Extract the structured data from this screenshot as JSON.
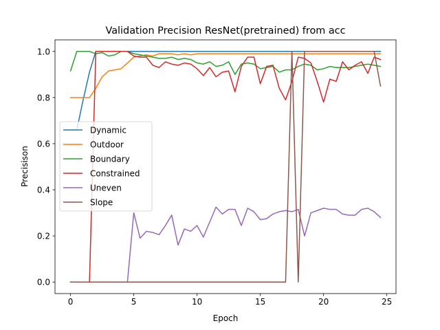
{
  "chart_data": {
    "type": "line",
    "title": "Validation Precision ResNet(pretrained) from acc",
    "xlabel": "Epoch",
    "ylabel": "Precisison",
    "xlim": [
      -1.225,
      25.725
    ],
    "ylim": [
      -0.05,
      1.05
    ],
    "xticks": [
      0,
      5,
      10,
      15,
      20,
      25
    ],
    "yticks": [
      0.0,
      0.2,
      0.4,
      0.6,
      0.8,
      1.0
    ],
    "xtick_labels": [
      "0",
      "5",
      "10",
      "15",
      "20",
      "25"
    ],
    "ytick_labels": [
      "0.0",
      "0.2",
      "0.4",
      "0.6",
      "0.8",
      "1.0"
    ],
    "grid": false,
    "legend_position": "center-left",
    "x": [
      0,
      0.5,
      1,
      1.5,
      2,
      2.5,
      3,
      3.5,
      4,
      4.5,
      5,
      5.5,
      6,
      6.5,
      7,
      7.5,
      8,
      8.5,
      9,
      9.5,
      10,
      10.5,
      11,
      11.5,
      12,
      12.5,
      13,
      13.5,
      14,
      14.5,
      15,
      15.5,
      16,
      16.5,
      17,
      17.5,
      18,
      18.5,
      19,
      19.5,
      20,
      20.5,
      21,
      21.5,
      22,
      22.5,
      23,
      23.5,
      24,
      24.5
    ],
    "series": [
      {
        "name": "Dynamic",
        "color": "#1f77b4",
        "values": [
          0.66,
          0.66,
          0.79,
          0.91,
          1.0,
          1.0,
          1.0,
          1.0,
          1.0,
          1.0,
          1.0,
          1.0,
          1.0,
          1.0,
          1.0,
          1.0,
          1.0,
          1.0,
          1.0,
          1.0,
          1.0,
          1.0,
          1.0,
          1.0,
          1.0,
          1.0,
          1.0,
          1.0,
          1.0,
          1.0,
          1.0,
          1.0,
          1.0,
          1.0,
          1.0,
          1.0,
          1.0,
          1.0,
          1.0,
          1.0,
          1.0,
          1.0,
          1.0,
          1.0,
          1.0,
          1.0,
          1.0,
          1.0,
          1.0,
          1.0
        ]
      },
      {
        "name": "Outdoor",
        "color": "#ff7f0e",
        "values": [
          0.8,
          0.8,
          0.8,
          0.8,
          0.84,
          0.89,
          0.915,
          0.92,
          0.925,
          0.95,
          0.975,
          0.98,
          0.985,
          0.98,
          0.99,
          0.99,
          0.99,
          0.985,
          0.99,
          0.985,
          0.99,
          0.99,
          0.99,
          0.99,
          0.99,
          0.99,
          0.99,
          0.99,
          0.99,
          0.99,
          0.99,
          0.99,
          0.99,
          0.99,
          0.99,
          0.99,
          0.99,
          0.99,
          0.99,
          0.99,
          0.99,
          0.99,
          0.99,
          0.99,
          0.99,
          0.99,
          0.99,
          0.99,
          0.99,
          0.99
        ]
      },
      {
        "name": "Boundary",
        "color": "#2ca02c",
        "values": [
          0.915,
          1.0,
          1.0,
          1.0,
          0.99,
          0.995,
          0.98,
          0.985,
          1.0,
          1.0,
          0.99,
          0.985,
          0.98,
          0.975,
          0.97,
          0.97,
          0.975,
          0.965,
          0.97,
          0.965,
          0.95,
          0.945,
          0.955,
          0.935,
          0.94,
          0.955,
          0.9,
          0.945,
          0.95,
          0.945,
          0.925,
          0.93,
          0.935,
          0.91,
          0.92,
          0.92,
          0.935,
          0.945,
          0.94,
          0.92,
          0.925,
          0.935,
          0.93,
          0.93,
          0.93,
          0.935,
          0.94,
          0.945,
          0.94,
          0.935
        ]
      },
      {
        "name": "Constrained",
        "color": "#d62728",
        "values": [
          0.0,
          0.0,
          0.0,
          0.0,
          1.0,
          1.0,
          1.0,
          1.0,
          1.0,
          1.0,
          0.98,
          0.975,
          0.975,
          0.94,
          0.93,
          0.955,
          0.945,
          0.94,
          0.95,
          0.945,
          0.925,
          0.895,
          0.93,
          0.89,
          0.91,
          0.915,
          0.825,
          0.935,
          0.975,
          0.975,
          0.86,
          0.935,
          0.94,
          0.84,
          0.79,
          0.87,
          0.975,
          0.97,
          0.95,
          0.87,
          0.78,
          0.88,
          0.87,
          0.955,
          0.92,
          0.94,
          0.955,
          0.905,
          0.975,
          0.965
        ]
      },
      {
        "name": "Uneven",
        "color": "#9467bd",
        "values": [
          0.0,
          0.0,
          0.0,
          0.0,
          0.0,
          0.0,
          0.0,
          0.0,
          0.0,
          0.0,
          0.3,
          0.19,
          0.22,
          0.215,
          0.205,
          0.245,
          0.29,
          0.16,
          0.23,
          0.22,
          0.245,
          0.195,
          0.26,
          0.325,
          0.295,
          0.315,
          0.315,
          0.245,
          0.32,
          0.305,
          0.27,
          0.275,
          0.295,
          0.305,
          0.31,
          0.305,
          0.315,
          0.2,
          0.3,
          0.31,
          0.32,
          0.315,
          0.315,
          0.295,
          0.29,
          0.29,
          0.315,
          0.32,
          0.305,
          0.28
        ]
      },
      {
        "name": "Slope",
        "color": "#8c564b",
        "values": [
          0.0,
          0.0,
          0.0,
          0.0,
          0.0,
          0.0,
          0.0,
          0.0,
          0.0,
          0.0,
          0.0,
          0.0,
          0.0,
          0.0,
          0.0,
          0.0,
          0.0,
          0.0,
          0.0,
          0.0,
          0.0,
          0.0,
          0.0,
          0.0,
          0.0,
          0.0,
          0.0,
          0.0,
          0.0,
          0.0,
          0.0,
          0.0,
          0.0,
          0.0,
          0.0,
          1.0,
          0.0,
          1.0,
          1.0,
          1.0,
          1.0,
          1.0,
          1.0,
          1.0,
          1.0,
          1.0,
          1.0,
          1.0,
          1.0,
          0.85
        ]
      }
    ]
  }
}
